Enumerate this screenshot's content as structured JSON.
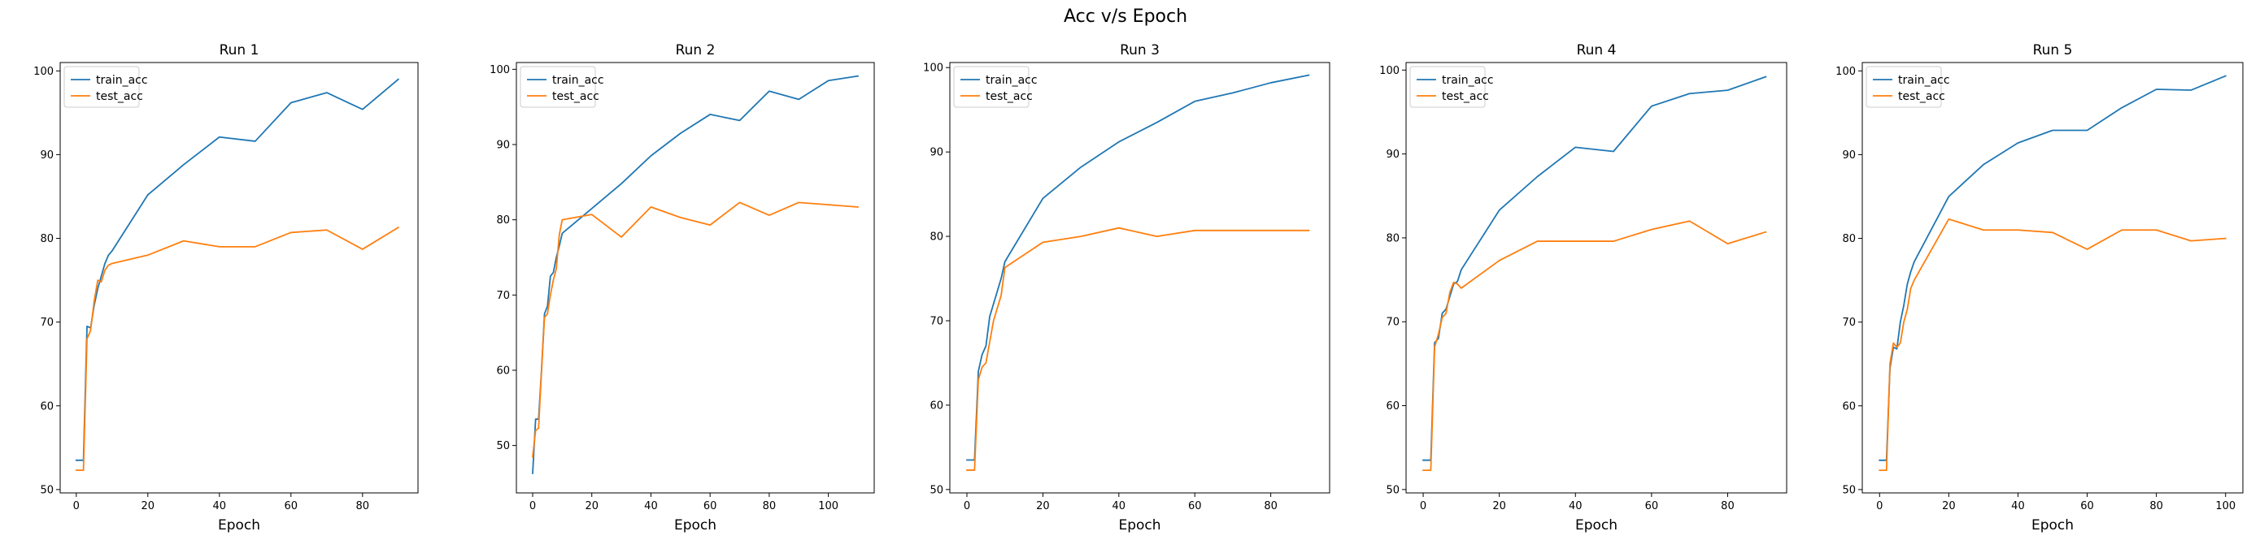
{
  "suptitle": "Acc v/s Epoch",
  "colors": {
    "train": "#1f77b4",
    "test": "#ff7f0e"
  },
  "chart_data": [
    {
      "type": "line",
      "title": "Run 1",
      "xlabel": "Epoch",
      "ylabel": "",
      "xlim": [
        -4.5,
        95.5
      ],
      "ylim": [
        49.6,
        101.0
      ],
      "xticks": [
        0,
        20,
        40,
        60,
        80
      ],
      "yticks": [
        50,
        60,
        70,
        80,
        90,
        100
      ],
      "legend": "upper left",
      "series": [
        {
          "name": "train_acc",
          "color": "#1f77b4",
          "x": [
            0,
            1,
            2,
            3,
            4,
            5,
            6,
            7,
            8,
            9,
            10,
            20,
            30,
            40,
            50,
            60,
            70,
            80,
            90
          ],
          "y": [
            53.5,
            53.5,
            53.5,
            69.5,
            69.3,
            72.0,
            74.0,
            75.5,
            77.0,
            78.0,
            78.5,
            85.2,
            88.8,
            92.1,
            91.6,
            96.2,
            97.4,
            95.4,
            99.0
          ]
        },
        {
          "name": "test_acc",
          "color": "#ff7f0e",
          "x": [
            0,
            1,
            2,
            3,
            4,
            5,
            6,
            7,
            8,
            9,
            10,
            20,
            30,
            40,
            50,
            60,
            70,
            80,
            90
          ],
          "y": [
            52.3,
            52.3,
            52.3,
            68.0,
            69.0,
            72.5,
            75.0,
            74.8,
            76.2,
            76.8,
            77.0,
            78.0,
            79.7,
            79.0,
            79.0,
            80.7,
            81.0,
            78.7,
            81.3
          ]
        }
      ]
    },
    {
      "type": "line",
      "title": "Run 2",
      "xlabel": "Epoch",
      "ylabel": "",
      "xlim": [
        -5.5,
        115.5
      ],
      "ylim": [
        43.7,
        100.9
      ],
      "xticks": [
        0,
        20,
        40,
        60,
        80,
        100
      ],
      "yticks": [
        50,
        60,
        70,
        80,
        90,
        100
      ],
      "legend": "upper left",
      "series": [
        {
          "name": "train_acc",
          "color": "#1f77b4",
          "x": [
            0,
            1,
            2,
            3,
            4,
            5,
            6,
            7,
            8,
            9,
            10,
            20,
            30,
            40,
            50,
            60,
            70,
            80,
            90,
            100,
            110
          ],
          "y": [
            46.3,
            53.5,
            53.5,
            60.0,
            67.5,
            68.5,
            72.5,
            73.0,
            75.0,
            76.5,
            78.2,
            81.5,
            84.8,
            88.5,
            91.5,
            94.0,
            93.2,
            97.1,
            96.0,
            98.5,
            99.1
          ]
        },
        {
          "name": "test_acc",
          "color": "#ff7f0e",
          "x": [
            0,
            1,
            2,
            3,
            4,
            5,
            6,
            7,
            8,
            9,
            10,
            20,
            30,
            40,
            50,
            60,
            70,
            80,
            90,
            100,
            110
          ],
          "y": [
            48.5,
            52.0,
            52.3,
            60.0,
            67.0,
            67.5,
            70.0,
            72.0,
            73.5,
            78.0,
            80.0,
            80.7,
            77.7,
            81.7,
            80.3,
            79.3,
            82.3,
            80.6,
            82.3,
            82.0,
            81.7
          ]
        }
      ]
    },
    {
      "type": "line",
      "title": "Run 3",
      "xlabel": "Epoch",
      "ylabel": "",
      "xlim": [
        -4.5,
        95.5
      ],
      "ylim": [
        49.6,
        100.6
      ],
      "xticks": [
        0,
        20,
        40,
        60,
        80
      ],
      "yticks": [
        50,
        60,
        70,
        80,
        90,
        100
      ],
      "legend": "upper left",
      "series": [
        {
          "name": "train_acc",
          "color": "#1f77b4",
          "x": [
            0,
            1,
            2,
            3,
            4,
            5,
            6,
            7,
            8,
            9,
            10,
            20,
            30,
            40,
            50,
            60,
            70,
            80,
            90
          ],
          "y": [
            53.5,
            53.5,
            53.5,
            64.0,
            66.0,
            67.0,
            70.5,
            72.0,
            73.5,
            75.0,
            77.0,
            84.5,
            88.2,
            91.2,
            93.5,
            96.0,
            97.0,
            98.2,
            99.1
          ]
        },
        {
          "name": "test_acc",
          "color": "#ff7f0e",
          "x": [
            0,
            1,
            2,
            3,
            4,
            5,
            6,
            7,
            8,
            9,
            10,
            20,
            30,
            40,
            50,
            60,
            70,
            80,
            90
          ],
          "y": [
            52.3,
            52.3,
            52.3,
            63.0,
            64.5,
            65.0,
            67.5,
            70.0,
            71.5,
            73.0,
            76.3,
            79.3,
            80.0,
            81.0,
            80.0,
            80.7,
            80.7,
            80.7,
            80.7
          ]
        }
      ]
    },
    {
      "type": "line",
      "title": "Run 4",
      "xlabel": "Epoch",
      "ylabel": "",
      "xlim": [
        -4.5,
        95.5
      ],
      "ylim": [
        49.6,
        100.9
      ],
      "xticks": [
        0,
        20,
        40,
        60,
        80
      ],
      "yticks": [
        50,
        60,
        70,
        80,
        90,
        100
      ],
      "legend": "upper left",
      "series": [
        {
          "name": "train_acc",
          "color": "#1f77b4",
          "x": [
            0,
            1,
            2,
            3,
            4,
            5,
            6,
            7,
            8,
            9,
            10,
            20,
            30,
            40,
            50,
            60,
            70,
            80,
            90
          ],
          "y": [
            53.5,
            53.5,
            53.5,
            67.5,
            68.0,
            71.0,
            71.5,
            73.0,
            74.5,
            74.8,
            76.2,
            83.3,
            87.3,
            90.8,
            90.3,
            95.7,
            97.2,
            97.6,
            99.2
          ]
        },
        {
          "name": "test_acc",
          "color": "#ff7f0e",
          "x": [
            0,
            1,
            2,
            3,
            4,
            5,
            6,
            7,
            8,
            9,
            10,
            20,
            30,
            40,
            50,
            60,
            70,
            80,
            90
          ],
          "y": [
            52.3,
            52.3,
            52.3,
            67.0,
            68.5,
            70.5,
            71.0,
            73.5,
            74.7,
            74.5,
            74.0,
            77.3,
            79.6,
            79.6,
            79.6,
            81.0,
            82.0,
            79.3,
            80.7
          ]
        }
      ]
    },
    {
      "type": "line",
      "title": "Run 5",
      "xlabel": "Epoch",
      "ylabel": "",
      "xlim": [
        -5.0,
        105.0
      ],
      "ylim": [
        49.6,
        101.0
      ],
      "xticks": [
        0,
        20,
        40,
        60,
        80,
        100
      ],
      "yticks": [
        50,
        60,
        70,
        80,
        90,
        100
      ],
      "legend": "upper left",
      "series": [
        {
          "name": "train_acc",
          "color": "#1f77b4",
          "x": [
            0,
            1,
            2,
            3,
            4,
            5,
            6,
            7,
            8,
            9,
            10,
            20,
            30,
            40,
            50,
            60,
            70,
            80,
            90,
            100
          ],
          "y": [
            53.5,
            53.5,
            53.5,
            64.5,
            67.0,
            66.8,
            70.0,
            72.0,
            74.5,
            76.0,
            77.2,
            85.0,
            88.8,
            91.4,
            92.9,
            92.9,
            95.6,
            97.8,
            97.7,
            99.4
          ]
        },
        {
          "name": "test_acc",
          "color": "#ff7f0e",
          "x": [
            0,
            1,
            2,
            3,
            4,
            5,
            6,
            7,
            8,
            9,
            10,
            20,
            30,
            40,
            50,
            60,
            70,
            80,
            90,
            100
          ],
          "y": [
            52.3,
            52.3,
            52.3,
            65.0,
            67.5,
            67.0,
            67.5,
            70.0,
            71.5,
            74.0,
            75.0,
            82.3,
            81.0,
            81.0,
            80.7,
            78.7,
            81.0,
            81.0,
            79.7,
            80.0
          ]
        }
      ]
    }
  ]
}
